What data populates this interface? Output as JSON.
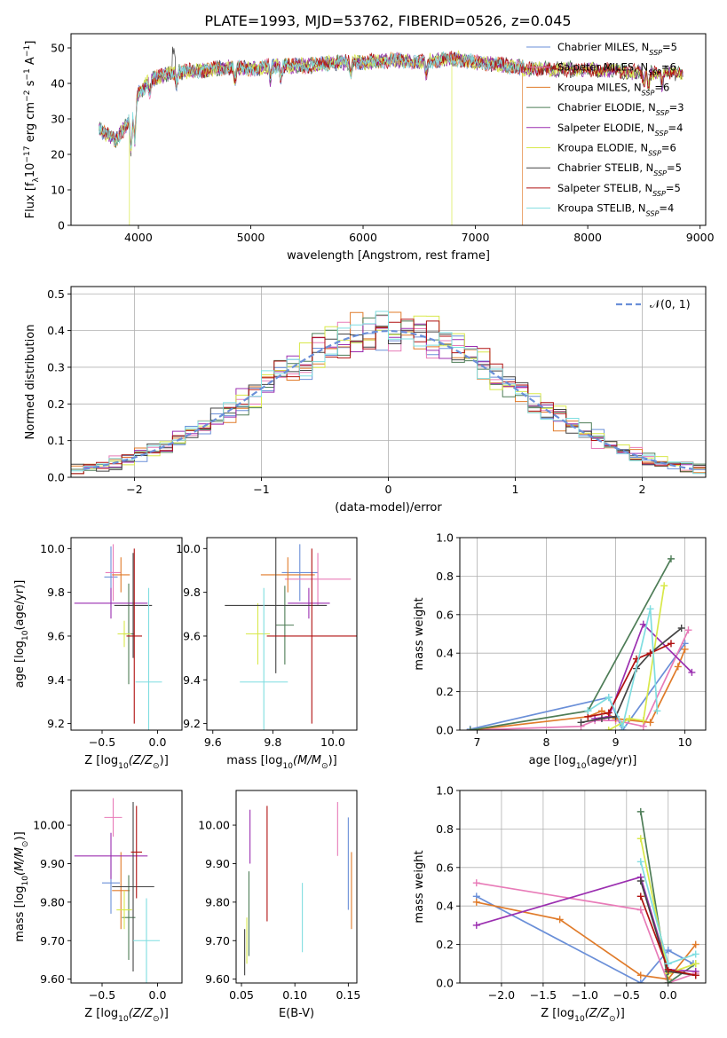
{
  "figure": {
    "title": "PLATE=1993, MJD=53762, FIBERID=0526, z=0.045"
  },
  "series_styles": [
    {
      "label": "Chabrier MILES, N",
      "sub": "SSP",
      "suffix": "=5",
      "color": "#6a8fd8"
    },
    {
      "label": "Salpeter MILES, N",
      "sub": "SSP",
      "suffix": "=6",
      "color": "#e87bb8"
    },
    {
      "label": "Kroupa MILES, N",
      "sub": "SSP",
      "suffix": "=6",
      "color": "#e07b2a"
    },
    {
      "label": "Chabrier ELODIE, N",
      "sub": "SSP",
      "suffix": "=3",
      "color": "#4e7d57"
    },
    {
      "label": "Salpeter ELODIE, N",
      "sub": "SSP",
      "suffix": "=4",
      "color": "#9b2fb0"
    },
    {
      "label": "Kroupa ELODIE, N",
      "sub": "SSP",
      "suffix": "=6",
      "color": "#d8e84a"
    },
    {
      "label": "Chabrier STELIB, N",
      "sub": "SSP",
      "suffix": "=5",
      "color": "#444444"
    },
    {
      "label": "Salpeter STELIB, N",
      "sub": "SSP",
      "suffix": "=5",
      "color": "#b01010"
    },
    {
      "label": "Kroupa STELIB, N",
      "sub": "SSP",
      "suffix": "=4",
      "color": "#7fdde0"
    }
  ],
  "chart_data": [
    {
      "id": "spectrum",
      "type": "line",
      "xlabel": "wavelength [Angstrom, rest frame]",
      "ylabel_parts": [
        "Flux [f",
        "λ",
        "10",
        "−17",
        " erg cm",
        "−2",
        " s",
        "−1",
        " A",
        "−1",
        "]"
      ],
      "xlim": [
        3400,
        9050
      ],
      "ylim": [
        0,
        54
      ],
      "xticks": [
        4000,
        5000,
        6000,
        7000,
        8000,
        9000
      ],
      "yticks": [
        0,
        10,
        20,
        30,
        40,
        50
      ],
      "grid": false,
      "legend": "top-right",
      "wavelength_range": [
        3650,
        8850
      ],
      "continuum": {
        "x": [
          3650,
          3800,
          3950,
          4000,
          4100,
          4300,
          4500,
          4800,
          5000,
          5200,
          5500,
          5800,
          6000,
          6300,
          6500,
          6800,
          7000,
          7300,
          7500,
          7800,
          8000,
          8300,
          8500,
          8850
        ],
        "y": [
          27,
          24,
          31,
          37,
          41,
          43,
          43.5,
          44.5,
          44,
          45,
          45,
          46,
          46,
          46.5,
          46,
          47,
          46,
          45,
          44,
          44,
          44,
          43.5,
          43,
          43
        ]
      },
      "dropouts": [
        {
          "series": 5,
          "x": 3920,
          "to": 0
        },
        {
          "series": 5,
          "x": 6790,
          "to": 0
        },
        {
          "series": 2,
          "x": 7420,
          "to": 0
        }
      ]
    },
    {
      "id": "residuals",
      "type": "histogram",
      "xlabel": "(data-model)/error",
      "ylabel": "Normed distribution",
      "xlim": [
        -2.5,
        2.5
      ],
      "ylim": [
        0,
        0.52
      ],
      "xticks": [
        -2,
        -1,
        0,
        1,
        2
      ],
      "yticks": [
        0.0,
        0.1,
        0.2,
        0.3,
        0.4,
        0.5
      ],
      "grid": true,
      "legend": "top-right",
      "legend_label": "𝒩(0, 1)",
      "bin_width": 0.1,
      "gaussian": {
        "mean": 0,
        "sigma": 1,
        "color": "#6a8fd8"
      }
    },
    {
      "id": "age-vs-Z",
      "type": "errorbar",
      "xlabel_parts": [
        "Z [log",
        "10",
        "(Z/Z",
        "⊙",
        ")]"
      ],
      "ylabel_parts": [
        "age  [log",
        "10",
        "(age/yr)]"
      ],
      "xlim": [
        -0.78,
        0.22
      ],
      "ylim": [
        9.17,
        10.05
      ],
      "xticks": [
        -0.5,
        0.0
      ],
      "yticks": [
        9.2,
        9.4,
        9.6,
        9.8,
        10.0
      ],
      "grid": false,
      "points": [
        {
          "s": 0,
          "x": -0.42,
          "xerr": 0.06,
          "y": 9.87,
          "yerr": 0.14
        },
        {
          "s": 1,
          "x": -0.4,
          "xerr": 0.07,
          "y": 9.89,
          "yerr": 0.13
        },
        {
          "s": 2,
          "x": -0.33,
          "xerr": 0.08,
          "y": 9.88,
          "yerr": 0.08
        },
        {
          "s": 3,
          "x": -0.26,
          "xerr": 0.05,
          "y": 9.61,
          "yerr": 0.23
        },
        {
          "s": 4,
          "x": -0.42,
          "xerr": 0.33,
          "y": 9.75,
          "yerr": 0.07
        },
        {
          "s": 5,
          "x": -0.3,
          "xerr": 0.06,
          "y": 9.61,
          "yerr": 0.06
        },
        {
          "s": 6,
          "x": -0.22,
          "xerr": 0.17,
          "y": 9.74,
          "yerr": 0.24
        },
        {
          "s": 7,
          "x": -0.21,
          "xerr": 0.07,
          "y": 9.6,
          "yerr": 0.4
        },
        {
          "s": 8,
          "x": -0.08,
          "xerr": 0.12,
          "y": 9.39,
          "yerr": 0.43
        }
      ]
    },
    {
      "id": "age-vs-mass",
      "type": "errorbar",
      "xlabel_parts": [
        "mass [log",
        "10",
        "(M/M",
        "⊙",
        ")]"
      ],
      "xlim": [
        9.58,
        10.08
      ],
      "ylim": [
        9.17,
        10.05
      ],
      "xticks": [
        9.6,
        9.8,
        10.0
      ],
      "yticks": [
        9.2,
        9.4,
        9.6,
        9.8,
        10.0
      ],
      "grid": false,
      "points": [
        {
          "s": 0,
          "x": 9.89,
          "xerr": 0.06,
          "y": 9.89,
          "yerr": 0.13
        },
        {
          "s": 1,
          "x": 9.95,
          "xerr": 0.11,
          "y": 9.86,
          "yerr": 0.12
        },
        {
          "s": 2,
          "x": 9.85,
          "xerr": 0.09,
          "y": 9.88,
          "yerr": 0.08
        },
        {
          "s": 3,
          "x": 9.84,
          "xerr": 0.03,
          "y": 9.65,
          "yerr": 0.18
        },
        {
          "s": 4,
          "x": 9.92,
          "xerr": 0.07,
          "y": 9.75,
          "yerr": 0.07
        },
        {
          "s": 5,
          "x": 9.75,
          "xerr": 0.04,
          "y": 9.61,
          "yerr": 0.14
        },
        {
          "s": 6,
          "x": 9.81,
          "xerr": 0.17,
          "y": 9.74,
          "yerr": 0.31
        },
        {
          "s": 7,
          "x": 9.93,
          "xerr": 0.15,
          "y": 9.6,
          "yerr": 0.4
        },
        {
          "s": 8,
          "x": 9.77,
          "xerr": 0.08,
          "y": 9.39,
          "yerr": 0.43
        }
      ]
    },
    {
      "id": "weight-vs-age",
      "type": "line",
      "xlabel_parts": [
        "age  [log",
        "10",
        "(age/yr)]"
      ],
      "ylabel": "mass weight",
      "xlim": [
        6.75,
        10.3
      ],
      "ylim": [
        0,
        1
      ],
      "xticks": [
        7,
        8,
        9,
        10
      ],
      "yticks": [
        0.0,
        0.2,
        0.4,
        0.6,
        0.8,
        1.0
      ],
      "grid": true,
      "series": [
        {
          "s": 0,
          "x": [
            6.9,
            8.9,
            9.1,
            10.0
          ],
          "y": [
            0.005,
            0.17,
            0.0,
            0.45
          ]
        },
        {
          "s": 1,
          "x": [
            6.9,
            8.5,
            8.7,
            9.0,
            9.4,
            10.05
          ],
          "y": [
            0.0,
            0.02,
            0.05,
            0.05,
            0.02,
            0.52
          ]
        },
        {
          "s": 2,
          "x": [
            6.9,
            8.6,
            8.8,
            9.0,
            9.5,
            9.9,
            10.0
          ],
          "y": [
            0.0,
            0.07,
            0.1,
            0.06,
            0.04,
            0.33,
            0.42
          ]
        },
        {
          "s": 3,
          "x": [
            6.9,
            8.6,
            9.8
          ],
          "y": [
            0.0,
            0.1,
            0.89
          ]
        },
        {
          "s": 4,
          "x": [
            8.7,
            8.9,
            9.4,
            10.1
          ],
          "y": [
            0.06,
            0.07,
            0.55,
            0.3
          ]
        },
        {
          "s": 5,
          "x": [
            8.9,
            9.2,
            9.4,
            9.7
          ],
          "y": [
            0.0,
            0.06,
            0.05,
            0.75
          ]
        },
        {
          "s": 6,
          "x": [
            8.5,
            8.8,
            9.0,
            9.3,
            9.5,
            9.95
          ],
          "y": [
            0.04,
            0.06,
            0.07,
            0.32,
            0.4,
            0.53
          ]
        },
        {
          "s": 7,
          "x": [
            8.6,
            8.9,
            9.3,
            9.5,
            9.8
          ],
          "y": [
            0.07,
            0.09,
            0.37,
            0.4,
            0.45
          ]
        },
        {
          "s": 8,
          "x": [
            8.6,
            8.9,
            9.1,
            9.5,
            9.6
          ],
          "y": [
            0.1,
            0.17,
            0.02,
            0.63,
            0.1
          ]
        }
      ]
    },
    {
      "id": "mass-vs-Z",
      "type": "errorbar",
      "xlabel_parts": [
        "Z [log",
        "10",
        "(Z/Z",
        "⊙",
        ")]"
      ],
      "ylabel_parts": [
        "mass [log",
        "10",
        "(M/M",
        "⊙",
        ")]"
      ],
      "xlim": [
        -0.78,
        0.22
      ],
      "ylim": [
        9.59,
        10.09
      ],
      "xticks": [
        -0.5,
        0.0
      ],
      "yticks": [
        9.6,
        9.7,
        9.8,
        9.9,
        10.0
      ],
      "grid": false,
      "points": [
        {
          "s": 0,
          "x": -0.42,
          "xerr": 0.08,
          "y": 9.85,
          "yerr": 0.08
        },
        {
          "s": 1,
          "x": -0.4,
          "xerr": 0.08,
          "y": 10.02,
          "yerr": 0.05
        },
        {
          "s": 2,
          "x": -0.33,
          "xerr": 0.08,
          "y": 9.83,
          "yerr": 0.1
        },
        {
          "s": 3,
          "x": -0.26,
          "xerr": 0.06,
          "y": 9.76,
          "yerr": 0.11
        },
        {
          "s": 4,
          "x": -0.42,
          "xerr": 0.33,
          "y": 9.92,
          "yerr": 0.06
        },
        {
          "s": 5,
          "x": -0.3,
          "xerr": 0.07,
          "y": 9.78,
          "yerr": 0.05
        },
        {
          "s": 6,
          "x": -0.22,
          "xerr": 0.19,
          "y": 9.84,
          "yerr": 0.22
        },
        {
          "s": 7,
          "x": -0.19,
          "xerr": 0.05,
          "y": 9.93,
          "yerr": 0.12
        },
        {
          "s": 8,
          "x": -0.1,
          "xerr": 0.12,
          "y": 9.7,
          "yerr": 0.11
        }
      ]
    },
    {
      "id": "mass-vs-ebv",
      "type": "errorbar",
      "xlabel": "E(B-V)",
      "xlim": [
        0.045,
        0.158
      ],
      "ylim": [
        9.59,
        10.09
      ],
      "xticks": [
        0.05,
        0.1,
        0.15
      ],
      "yticks": [
        9.6,
        9.7,
        9.8,
        9.9,
        10.0
      ],
      "grid": false,
      "points": [
        {
          "s": 0,
          "x": 0.15,
          "xerr": 0,
          "y": 9.9,
          "yerr": 0.12
        },
        {
          "s": 1,
          "x": 0.14,
          "xerr": 0,
          "y": 9.99,
          "yerr": 0.07
        },
        {
          "s": 2,
          "x": 0.153,
          "xerr": 0,
          "y": 9.83,
          "yerr": 0.1
        },
        {
          "s": 3,
          "x": 0.057,
          "xerr": 0,
          "y": 9.77,
          "yerr": 0.11
        },
        {
          "s": 4,
          "x": 0.058,
          "xerr": 0,
          "y": 9.97,
          "yerr": 0.07
        },
        {
          "s": 5,
          "x": 0.055,
          "xerr": 0,
          "y": 9.7,
          "yerr": 0.06
        },
        {
          "s": 6,
          "x": 0.053,
          "xerr": 0,
          "y": 9.67,
          "yerr": 0.06
        },
        {
          "s": 7,
          "x": 0.074,
          "xerr": 0,
          "y": 9.9,
          "yerr": 0.15
        },
        {
          "s": 8,
          "x": 0.107,
          "xerr": 0,
          "y": 9.76,
          "yerr": 0.09
        }
      ]
    },
    {
      "id": "weight-vs-Z",
      "type": "line",
      "xlabel_parts": [
        "Z [log",
        "10",
        "(Z/Z",
        "⊙",
        ")]"
      ],
      "ylabel": "mass weight",
      "xlim": [
        -2.5,
        0.45
      ],
      "ylim": [
        0,
        1
      ],
      "xticks": [
        -2.0,
        -1.5,
        -1.0,
        -0.5,
        0.0
      ],
      "yticks": [
        0.0,
        0.2,
        0.4,
        0.6,
        0.8,
        1.0
      ],
      "grid": true,
      "series": [
        {
          "s": 0,
          "x": [
            -2.3,
            -0.33,
            0.0,
            0.3
          ],
          "y": [
            0.45,
            0.0,
            0.17,
            0.1
          ]
        },
        {
          "s": 1,
          "x": [
            -2.3,
            -0.33,
            0.0,
            0.33
          ],
          "y": [
            0.52,
            0.38,
            0.0,
            0.05
          ]
        },
        {
          "s": 2,
          "x": [
            -2.3,
            -1.3,
            -0.33,
            0.0,
            0.33
          ],
          "y": [
            0.42,
            0.33,
            0.04,
            0.02,
            0.2
          ]
        },
        {
          "s": 3,
          "x": [
            -0.33,
            0.0,
            0.33
          ],
          "y": [
            0.89,
            0.0,
            0.1
          ]
        },
        {
          "s": 4,
          "x": [
            -2.3,
            -0.33,
            0.0,
            0.33
          ],
          "y": [
            0.3,
            0.55,
            0.07,
            0.06
          ]
        },
        {
          "s": 5,
          "x": [
            -0.33,
            0.0,
            0.33
          ],
          "y": [
            0.75,
            0.05,
            0.1
          ]
        },
        {
          "s": 6,
          "x": [
            -0.33,
            0.0,
            0.33
          ],
          "y": [
            0.53,
            0.06,
            0.04
          ]
        },
        {
          "s": 7,
          "x": [
            -0.33,
            0.0,
            0.33
          ],
          "y": [
            0.45,
            0.07,
            0.04
          ]
        },
        {
          "s": 8,
          "x": [
            -0.33,
            0.0,
            0.33
          ],
          "y": [
            0.63,
            0.1,
            0.15
          ]
        }
      ]
    }
  ]
}
